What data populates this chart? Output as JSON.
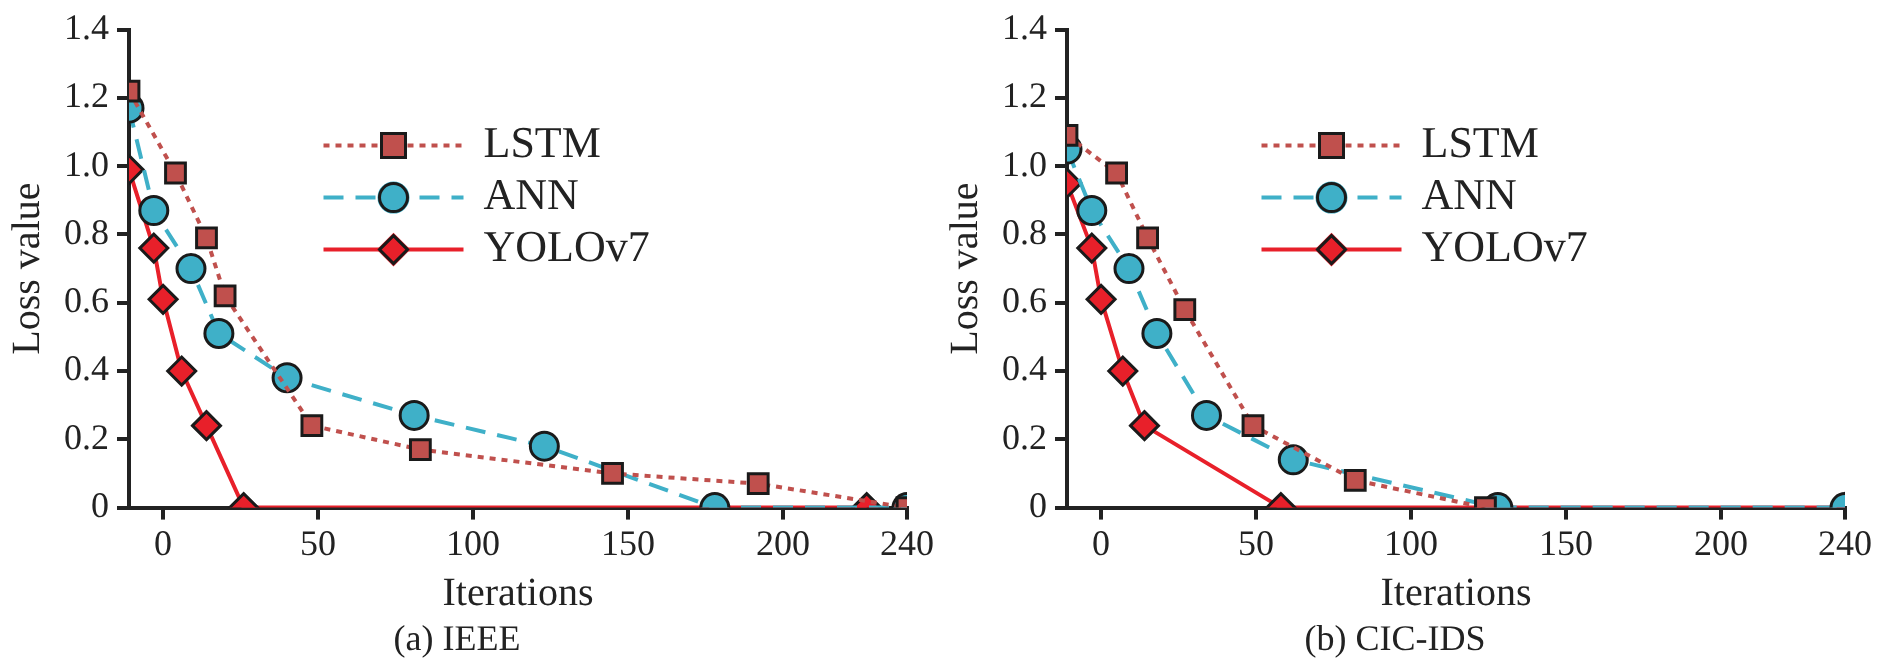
{
  "chart_data": [
    {
      "type": "line",
      "title": "(a) IEEE",
      "xlabel": "Iterations",
      "ylabel": "Loss value",
      "xlim": [
        -11,
        240
      ],
      "xticks": [
        0,
        50,
        100,
        150,
        200,
        240
      ],
      "ylim": [
        0,
        1.4
      ],
      "yticks": [
        0,
        0.2,
        0.4,
        0.6,
        0.8,
        {
          "value": 1,
          "label": "1.0"
        },
        1.2,
        1.4
      ],
      "grid": false,
      "legend": "top right",
      "series": [
        {
          "name": "LSTM",
          "color": "#c0504d",
          "marker": "square",
          "line_style": "dotted",
          "x": [
            -11,
            4,
            14,
            20,
            48,
            83,
            145,
            192,
            240
          ],
          "values": [
            1.22,
            0.98,
            0.79,
            0.62,
            0.24,
            0.17,
            0.1,
            0.07,
            0
          ]
        },
        {
          "name": "ANN",
          "color": "#3fb0c8",
          "marker": "circle",
          "line_style": "dashed",
          "x": [
            -11,
            -3,
            9,
            18,
            40,
            81,
            123,
            178,
            240
          ],
          "values": [
            1.17,
            0.87,
            0.7,
            0.51,
            0.38,
            0.27,
            0.18,
            0,
            0
          ]
        },
        {
          "name": "YOLOv7",
          "color": "#e8202a",
          "marker": "diamond",
          "line_style": "solid",
          "x": [
            -11,
            -3,
            0,
            6,
            14,
            26,
            227
          ],
          "values": [
            0.99,
            0.76,
            0.61,
            0.4,
            0.24,
            0,
            0
          ]
        }
      ]
    },
    {
      "type": "line",
      "title": "(b) CIC-IDS",
      "xlabel": "Iterations",
      "ylabel": "Loss value",
      "xlim": [
        -11,
        240
      ],
      "xticks": [
        0,
        50,
        100,
        150,
        200,
        240
      ],
      "ylim": [
        0,
        1.4
      ],
      "yticks": [
        0,
        0.2,
        0.4,
        0.6,
        0.8,
        {
          "value": 1,
          "label": "1.0"
        },
        1.2,
        1.4
      ],
      "grid": false,
      "legend": "top right",
      "series": [
        {
          "name": "LSTM",
          "color": "#c0504d",
          "marker": "square",
          "line_style": "dotted",
          "x": [
            -11,
            5,
            15,
            27,
            49,
            82,
            124
          ],
          "values": [
            1.09,
            0.98,
            0.79,
            0.58,
            0.24,
            0.08,
            0
          ]
        },
        {
          "name": "ANN",
          "color": "#3fb0c8",
          "marker": "circle",
          "line_style": "dashed",
          "x": [
            -11,
            -3,
            9,
            18,
            34,
            62,
            128,
            240
          ],
          "values": [
            1.05,
            0.87,
            0.7,
            0.51,
            0.27,
            0.14,
            0,
            0
          ]
        },
        {
          "name": "YOLOv7",
          "color": "#e8202a",
          "marker": "diamond",
          "line_style": "solid",
          "x": [
            -11,
            -3,
            0,
            7,
            14,
            58,
            240
          ],
          "values": [
            0.95,
            0.76,
            0.61,
            0.4,
            0.24,
            0,
            0
          ]
        }
      ]
    }
  ]
}
